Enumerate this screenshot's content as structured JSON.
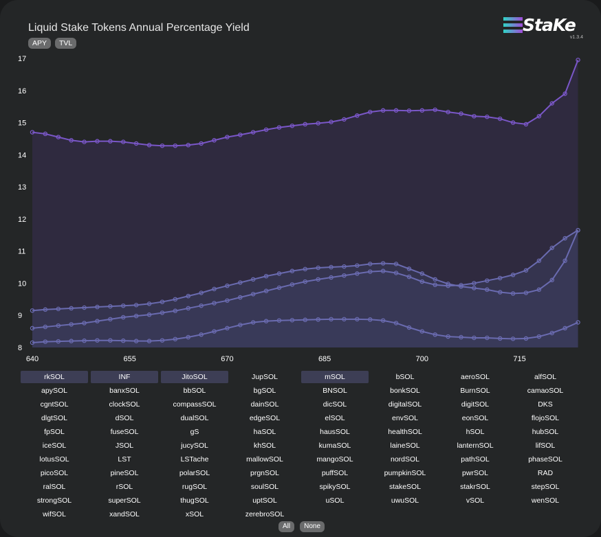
{
  "header": {
    "title": "Liquid Stake Tokens Annual Percentage Yield",
    "tabs": [
      "APY",
      "TVL"
    ]
  },
  "logo": {
    "wordmark": "StaKe",
    "version": "v1.3.4"
  },
  "colors": {
    "series_top": "#7a57c8",
    "series_low": "#6a6bb0",
    "fill_top": "#2f2a3f",
    "fill_low": "#3a3c5c"
  },
  "chart_data": {
    "type": "area",
    "title": "",
    "xlabel": "",
    "ylabel": "",
    "xlim": [
      640,
      725
    ],
    "ylim": [
      8,
      17
    ],
    "x_ticks": [
      640,
      655,
      670,
      685,
      700,
      715
    ],
    "y_ticks": [
      8,
      9,
      10,
      11,
      12,
      13,
      14,
      15,
      16,
      17
    ],
    "grid": false,
    "legend": "none",
    "x": [
      640,
      642,
      644,
      646,
      648,
      650,
      652,
      654,
      656,
      658,
      660,
      662,
      664,
      666,
      668,
      670,
      672,
      674,
      676,
      678,
      680,
      682,
      684,
      686,
      688,
      690,
      692,
      694,
      696,
      698,
      700,
      702,
      704,
      706,
      708,
      710,
      712,
      714,
      716,
      718,
      720,
      722,
      724
    ],
    "series": [
      {
        "values": [
          14.7,
          14.65,
          14.55,
          14.45,
          14.4,
          14.42,
          14.42,
          14.4,
          14.35,
          14.3,
          14.28,
          14.28,
          14.3,
          14.35,
          14.45,
          14.55,
          14.62,
          14.7,
          14.78,
          14.85,
          14.9,
          14.95,
          14.98,
          15.02,
          15.1,
          15.22,
          15.33,
          15.38,
          15.38,
          15.37,
          15.38,
          15.4,
          15.33,
          15.28,
          15.2,
          15.18,
          15.12,
          15.0,
          14.95,
          15.2,
          15.6,
          15.9,
          16.95
        ]
      },
      {
        "values": [
          9.15,
          9.18,
          9.2,
          9.22,
          9.24,
          9.26,
          9.28,
          9.3,
          9.32,
          9.36,
          9.42,
          9.5,
          9.6,
          9.7,
          9.82,
          9.92,
          10.02,
          10.12,
          10.22,
          10.3,
          10.38,
          10.44,
          10.48,
          10.5,
          10.52,
          10.55,
          10.6,
          10.62,
          10.6,
          10.45,
          10.3,
          10.12,
          9.98,
          9.9,
          9.85,
          9.8,
          9.72,
          9.68,
          9.7,
          9.8,
          10.1,
          10.7,
          11.65
        ]
      },
      {
        "values": [
          8.6,
          8.64,
          8.68,
          8.72,
          8.76,
          8.82,
          8.88,
          8.94,
          8.98,
          9.02,
          9.08,
          9.14,
          9.22,
          9.3,
          9.38,
          9.46,
          9.56,
          9.66,
          9.76,
          9.86,
          9.96,
          10.05,
          10.12,
          10.18,
          10.24,
          10.3,
          10.36,
          10.38,
          10.32,
          10.2,
          10.05,
          9.95,
          9.92,
          9.94,
          10.0,
          10.08,
          10.16,
          10.26,
          10.4,
          10.7,
          11.1,
          11.4,
          11.65
        ]
      },
      {
        "values": [
          8.15,
          8.18,
          8.19,
          8.2,
          8.21,
          8.22,
          8.22,
          8.21,
          8.2,
          8.2,
          8.22,
          8.26,
          8.32,
          8.4,
          8.5,
          8.6,
          8.7,
          8.78,
          8.82,
          8.84,
          8.85,
          8.86,
          8.87,
          8.88,
          8.88,
          8.88,
          8.87,
          8.84,
          8.76,
          8.62,
          8.5,
          8.4,
          8.34,
          8.32,
          8.3,
          8.3,
          8.28,
          8.27,
          8.28,
          8.34,
          8.45,
          8.6,
          8.78
        ]
      }
    ]
  },
  "tokens": [
    {
      "label": "rkSOL",
      "selected": true
    },
    {
      "label": "INF",
      "selected": true
    },
    {
      "label": "JitoSOL",
      "selected": true
    },
    {
      "label": "JupSOL",
      "selected": false
    },
    {
      "label": "mSOL",
      "selected": true
    },
    {
      "label": "bSOL",
      "selected": false
    },
    {
      "label": "aeroSOL",
      "selected": false
    },
    {
      "label": "alfSOL",
      "selected": false
    },
    {
      "label": "apySOL",
      "selected": false
    },
    {
      "label": "banxSOL",
      "selected": false
    },
    {
      "label": "bbSOL",
      "selected": false
    },
    {
      "label": "bgSOL",
      "selected": false
    },
    {
      "label": "BNSOL",
      "selected": false
    },
    {
      "label": "bonkSOL",
      "selected": false
    },
    {
      "label": "BurnSOL",
      "selected": false
    },
    {
      "label": "camaoSOL",
      "selected": false
    },
    {
      "label": "cgntSOL",
      "selected": false
    },
    {
      "label": "clockSOL",
      "selected": false
    },
    {
      "label": "compassSOL",
      "selected": false
    },
    {
      "label": "dainSOL",
      "selected": false
    },
    {
      "label": "dicSOL",
      "selected": false
    },
    {
      "label": "digitalSOL",
      "selected": false
    },
    {
      "label": "digitSOL",
      "selected": false
    },
    {
      "label": "DKS",
      "selected": false
    },
    {
      "label": "dlgtSOL",
      "selected": false
    },
    {
      "label": "dSOL",
      "selected": false
    },
    {
      "label": "dualSOL",
      "selected": false
    },
    {
      "label": "edgeSOL",
      "selected": false
    },
    {
      "label": "elSOL",
      "selected": false
    },
    {
      "label": "envSOL",
      "selected": false
    },
    {
      "label": "eonSOL",
      "selected": false
    },
    {
      "label": "flojoSOL",
      "selected": false
    },
    {
      "label": "fpSOL",
      "selected": false
    },
    {
      "label": "fuseSOL",
      "selected": false
    },
    {
      "label": "gS",
      "selected": false
    },
    {
      "label": "haSOL",
      "selected": false
    },
    {
      "label": "hausSOL",
      "selected": false
    },
    {
      "label": "healthSOL",
      "selected": false
    },
    {
      "label": "hSOL",
      "selected": false
    },
    {
      "label": "hubSOL",
      "selected": false
    },
    {
      "label": "iceSOL",
      "selected": false
    },
    {
      "label": "JSOL",
      "selected": false
    },
    {
      "label": "jucySOL",
      "selected": false
    },
    {
      "label": "khSOL",
      "selected": false
    },
    {
      "label": "kumaSOL",
      "selected": false
    },
    {
      "label": "laineSOL",
      "selected": false
    },
    {
      "label": "lanternSOL",
      "selected": false
    },
    {
      "label": "lifSOL",
      "selected": false
    },
    {
      "label": "lotusSOL",
      "selected": false
    },
    {
      "label": "LST",
      "selected": false
    },
    {
      "label": "LSTache",
      "selected": false
    },
    {
      "label": "mallowSOL",
      "selected": false
    },
    {
      "label": "mangoSOL",
      "selected": false
    },
    {
      "label": "nordSOL",
      "selected": false
    },
    {
      "label": "pathSOL",
      "selected": false
    },
    {
      "label": "phaseSOL",
      "selected": false
    },
    {
      "label": "picoSOL",
      "selected": false
    },
    {
      "label": "pineSOL",
      "selected": false
    },
    {
      "label": "polarSOL",
      "selected": false
    },
    {
      "label": "prgnSOL",
      "selected": false
    },
    {
      "label": "puffSOL",
      "selected": false
    },
    {
      "label": "pumpkinSOL",
      "selected": false
    },
    {
      "label": "pwrSOL",
      "selected": false
    },
    {
      "label": "RAD",
      "selected": false
    },
    {
      "label": "ralSOL",
      "selected": false
    },
    {
      "label": "rSOL",
      "selected": false
    },
    {
      "label": "rugSOL",
      "selected": false
    },
    {
      "label": "soulSOL",
      "selected": false
    },
    {
      "label": "spikySOL",
      "selected": false
    },
    {
      "label": "stakeSOL",
      "selected": false
    },
    {
      "label": "stakrSOL",
      "selected": false
    },
    {
      "label": "stepSOL",
      "selected": false
    },
    {
      "label": "strongSOL",
      "selected": false
    },
    {
      "label": "superSOL",
      "selected": false
    },
    {
      "label": "thugSOL",
      "selected": false
    },
    {
      "label": "uptSOL",
      "selected": false
    },
    {
      "label": "uSOL",
      "selected": false
    },
    {
      "label": "uwuSOL",
      "selected": false
    },
    {
      "label": "vSOL",
      "selected": false
    },
    {
      "label": "wenSOL",
      "selected": false
    },
    {
      "label": "wifSOL",
      "selected": false
    },
    {
      "label": "xandSOL",
      "selected": false
    },
    {
      "label": "xSOL",
      "selected": false
    },
    {
      "label": "zerebroSOL",
      "selected": false
    }
  ],
  "buttons": {
    "all": "All",
    "none": "None"
  }
}
